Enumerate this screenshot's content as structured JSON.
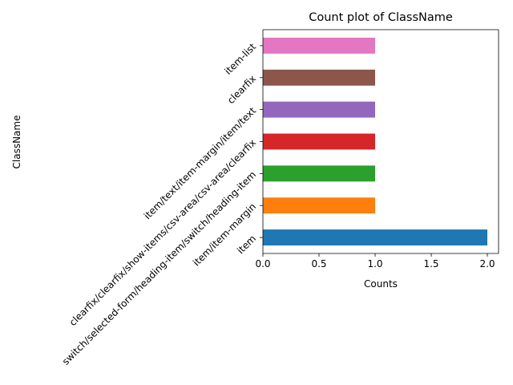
{
  "chart_data": {
    "type": "bar",
    "orientation": "horizontal",
    "title": "Count plot of ClassName",
    "xlabel": "Counts",
    "ylabel": "ClassName",
    "categories": [
      "item",
      "item/item-margin",
      "switch/selected-form/heading-item/switch/heading-item",
      "clearfix/clearfix/show-items/csv-area/csv-area/clearfix",
      "item/text/item-margin/item/text",
      "clearfix",
      "item-list"
    ],
    "values": [
      2,
      1,
      1,
      1,
      1,
      1,
      1
    ],
    "colors": [
      "#1f77b4",
      "#ff7f0e",
      "#2ca02c",
      "#d62728",
      "#9467bd",
      "#8c564b",
      "#e377c2"
    ],
    "xlim": [
      0,
      2.1
    ],
    "xticks": [
      0.0,
      0.5,
      1.0,
      1.5,
      2.0
    ],
    "xtick_labels": [
      "0.0",
      "0.5",
      "1.0",
      "1.5",
      "2.0"
    ],
    "ytick_rotation_deg": 45,
    "grid": false,
    "legend": "none"
  }
}
